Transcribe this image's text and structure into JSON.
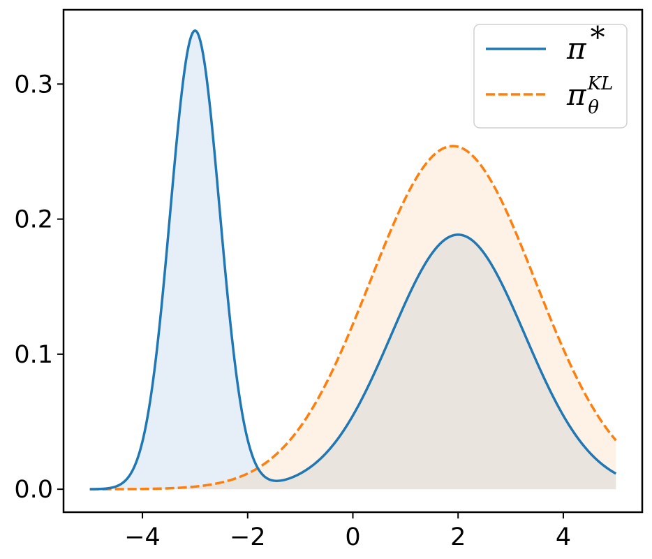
{
  "chart_data": {
    "type": "area",
    "x_range": [
      -5,
      5
    ],
    "xlim": [
      -5.5,
      5.5
    ],
    "ylim": [
      -0.017,
      0.355
    ],
    "xticks": [
      -4,
      -2,
      0,
      2,
      4
    ],
    "xtick_labels": [
      "−4",
      "−2",
      "0",
      "2",
      "4"
    ],
    "yticks": [
      0.0,
      0.1,
      0.2,
      0.3
    ],
    "ytick_labels": [
      "0.0",
      "0.1",
      "0.2",
      "0.3"
    ],
    "grid": false,
    "legend_position": "top-right",
    "series": [
      {
        "name": "π*",
        "legend_label": "π",
        "legend_superscript": "*",
        "color": "#1f77b4",
        "fill_color": "#e6eff8",
        "line_style": "solid",
        "components": [
          {
            "weight": 0.4,
            "mean": -3.0,
            "sd": 0.47
          },
          {
            "weight": 0.6,
            "mean": 2.0,
            "sd": 1.27
          }
        ]
      },
      {
        "name": "πθKL",
        "legend_label": "π",
        "legend_superscript": "KL",
        "legend_subscript": "θ",
        "color": "#ff7f0e",
        "fill_color": "#fef1e5",
        "line_style": "dashed",
        "components": [
          {
            "weight": 1.0,
            "mean": 1.9,
            "sd": 1.57
          }
        ]
      }
    ],
    "overlap_fill_color": "#e9e4de"
  }
}
